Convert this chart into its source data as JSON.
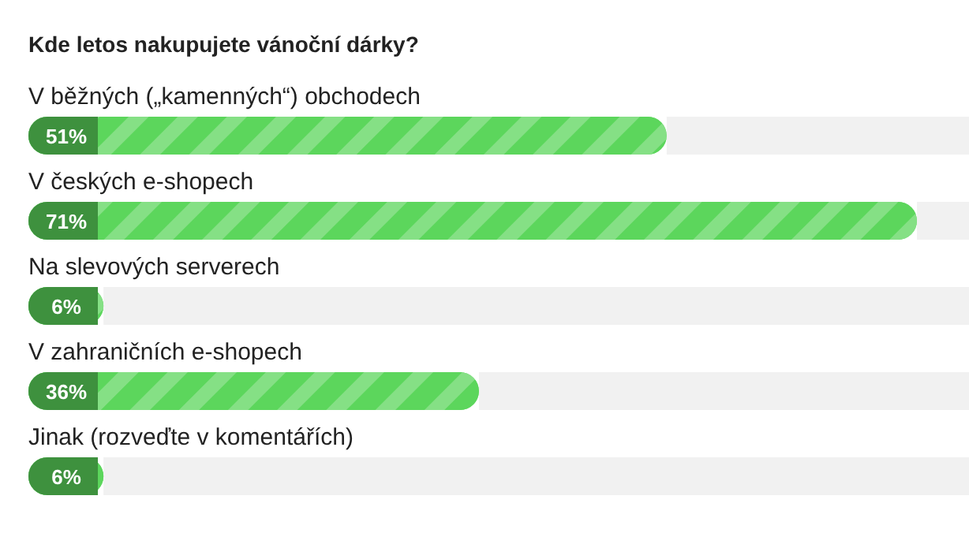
{
  "chart_data": {
    "type": "bar",
    "orientation": "horizontal",
    "title": "Kde letos nakupujete vánoční dárky?",
    "categories": [
      "V běžných („kamenných“) obchodech",
      "V českých e-shopech",
      "Na slevových serverech",
      "V zahraničních e-shopech",
      "Jinak (rozveďte v komentářích)"
    ],
    "values": [
      51,
      71,
      6,
      36,
      6
    ],
    "value_labels": [
      "51%",
      "71%",
      "6%",
      "36%",
      "6%"
    ],
    "color": "#5cd65c"
  }
}
